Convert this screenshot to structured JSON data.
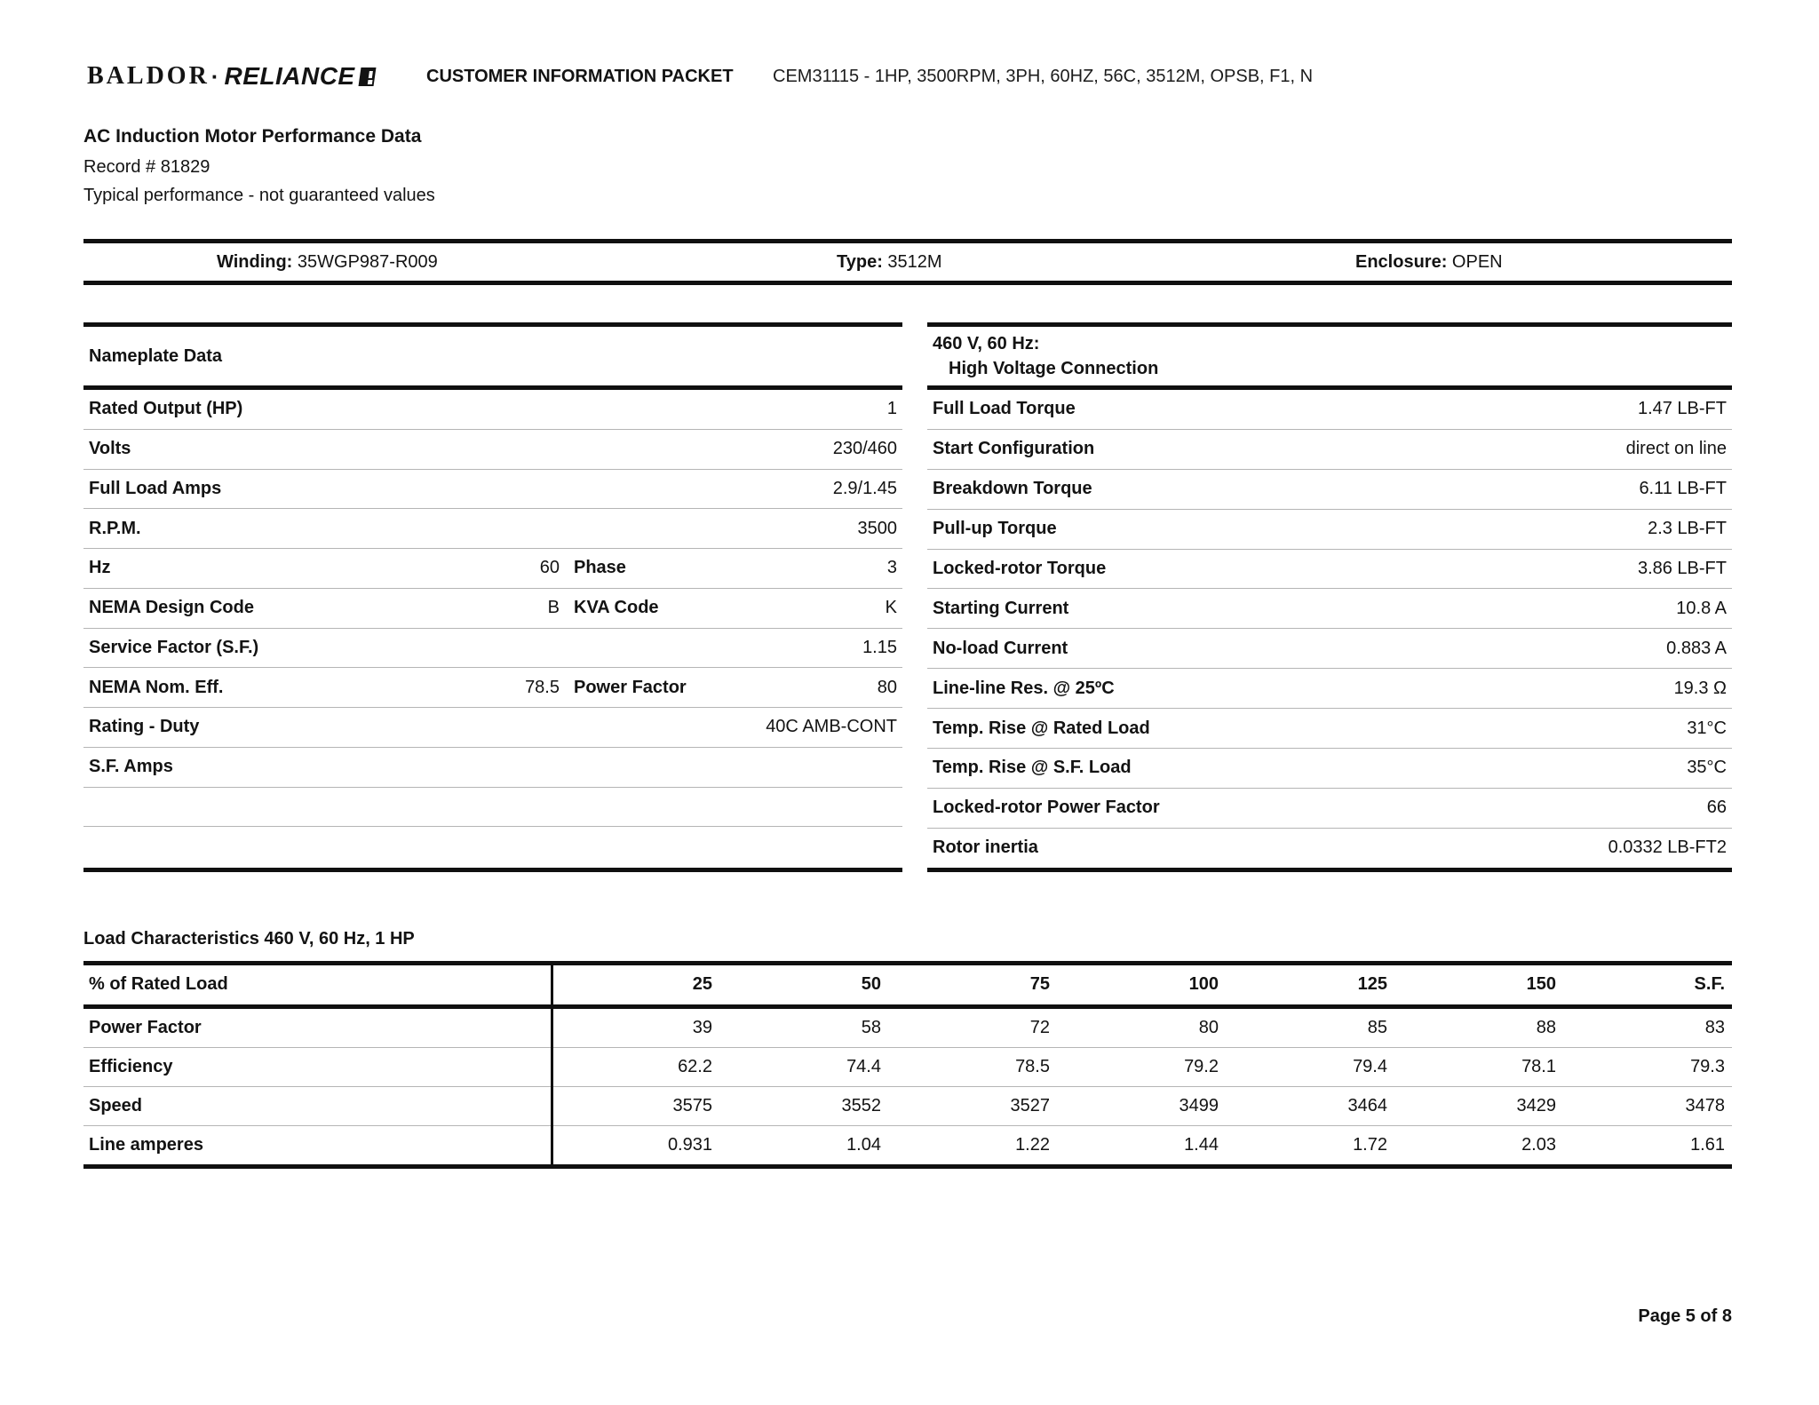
{
  "header": {
    "logo_baldor": "BALDOR",
    "logo_dot": "·",
    "logo_reliance": "RELIANCE",
    "packet_title": "CUSTOMER INFORMATION PACKET",
    "spec": "CEM31115 - 1HP, 3500RPM, 3PH, 60HZ, 56C, 3512M, OPSB, F1, N"
  },
  "title_block": {
    "title": "AC Induction Motor Performance Data",
    "record": "Record # 81829",
    "note": "Typical performance - not guaranteed values"
  },
  "winding_bar": {
    "winding_label": "Winding:",
    "winding_value": "35WGP987-R009",
    "type_label": "Type:",
    "type_value": "3512M",
    "enclosure_label": "Enclosure:",
    "enclosure_value": "OPEN"
  },
  "nameplate": {
    "title": "Nameplate Data",
    "rows": [
      {
        "label": "Rated Output (HP)",
        "mid_value": "",
        "mid_label": "",
        "value": "1"
      },
      {
        "label": "Volts",
        "mid_value": "",
        "mid_label": "",
        "value": "230/460"
      },
      {
        "label": "Full Load Amps",
        "mid_value": "",
        "mid_label": "",
        "value": "2.9/1.45"
      },
      {
        "label": "R.P.M.",
        "mid_value": "",
        "mid_label": "",
        "value": "3500"
      },
      {
        "label": "Hz",
        "mid_value": "60",
        "mid_label": "Phase",
        "value": "3"
      },
      {
        "label": "NEMA Design Code",
        "mid_value": "B",
        "mid_label": "KVA Code",
        "value": "K"
      },
      {
        "label": "Service Factor (S.F.)",
        "mid_value": "",
        "mid_label": "",
        "value": "1.15"
      },
      {
        "label": "NEMA Nom. Eff.",
        "mid_value": "78.5",
        "mid_label": "Power Factor",
        "value": "80"
      },
      {
        "label": "Rating - Duty",
        "mid_value": "",
        "mid_label": "",
        "value": "40C AMB-CONT"
      },
      {
        "label": "S.F. Amps",
        "mid_value": "",
        "mid_label": "",
        "value": ""
      },
      {
        "label": "",
        "mid_value": "",
        "mid_label": "",
        "value": ""
      },
      {
        "label": "",
        "mid_value": "",
        "mid_label": "",
        "value": ""
      }
    ]
  },
  "hv_connection": {
    "title_line1": "460 V, 60 Hz:",
    "title_line2": "High Voltage Connection",
    "rows": [
      {
        "label": "Full Load Torque",
        "value": "1.47 LB-FT"
      },
      {
        "label": "Start Configuration",
        "value": "direct on line"
      },
      {
        "label": "Breakdown Torque",
        "value": "6.11 LB-FT"
      },
      {
        "label": "Pull-up Torque",
        "value": "2.3 LB-FT"
      },
      {
        "label": "Locked-rotor Torque",
        "value": "3.86 LB-FT"
      },
      {
        "label": "Starting Current",
        "value": "10.8 A"
      },
      {
        "label": "No-load Current",
        "value": "0.883 A"
      },
      {
        "label": "Line-line Res. @ 25ºC",
        "value": "19.3 Ω"
      },
      {
        "label": "Temp. Rise @ Rated Load",
        "value": "31°C"
      },
      {
        "label": "Temp. Rise @ S.F. Load",
        "value": "35°C"
      },
      {
        "label": "Locked-rotor Power Factor",
        "value": "66"
      },
      {
        "label": "Rotor inertia",
        "value": "0.0332 LB-FT2"
      }
    ]
  },
  "load_characteristics": {
    "title": "Load Characteristics 460 V, 60 Hz, 1 HP",
    "header_label": "% of Rated Load",
    "columns": [
      "25",
      "50",
      "75",
      "100",
      "125",
      "150",
      "S.F."
    ],
    "rows": [
      {
        "label": "Power Factor",
        "values": [
          "39",
          "58",
          "72",
          "80",
          "85",
          "88",
          "83"
        ]
      },
      {
        "label": "Efficiency",
        "values": [
          "62.2",
          "74.4",
          "78.5",
          "79.2",
          "79.4",
          "78.1",
          "79.3"
        ]
      },
      {
        "label": "Speed",
        "values": [
          "3575",
          "3552",
          "3527",
          "3499",
          "3464",
          "3429",
          "3478"
        ]
      },
      {
        "label": "Line amperes",
        "values": [
          "0.931",
          "1.04",
          "1.22",
          "1.44",
          "1.72",
          "2.03",
          "1.61"
        ]
      }
    ]
  },
  "footer": {
    "page": "Page 5 of 8"
  },
  "colors": {
    "ink": "#131313",
    "rule_thick": "#101010",
    "rule_thin": "#b5b5b5"
  }
}
